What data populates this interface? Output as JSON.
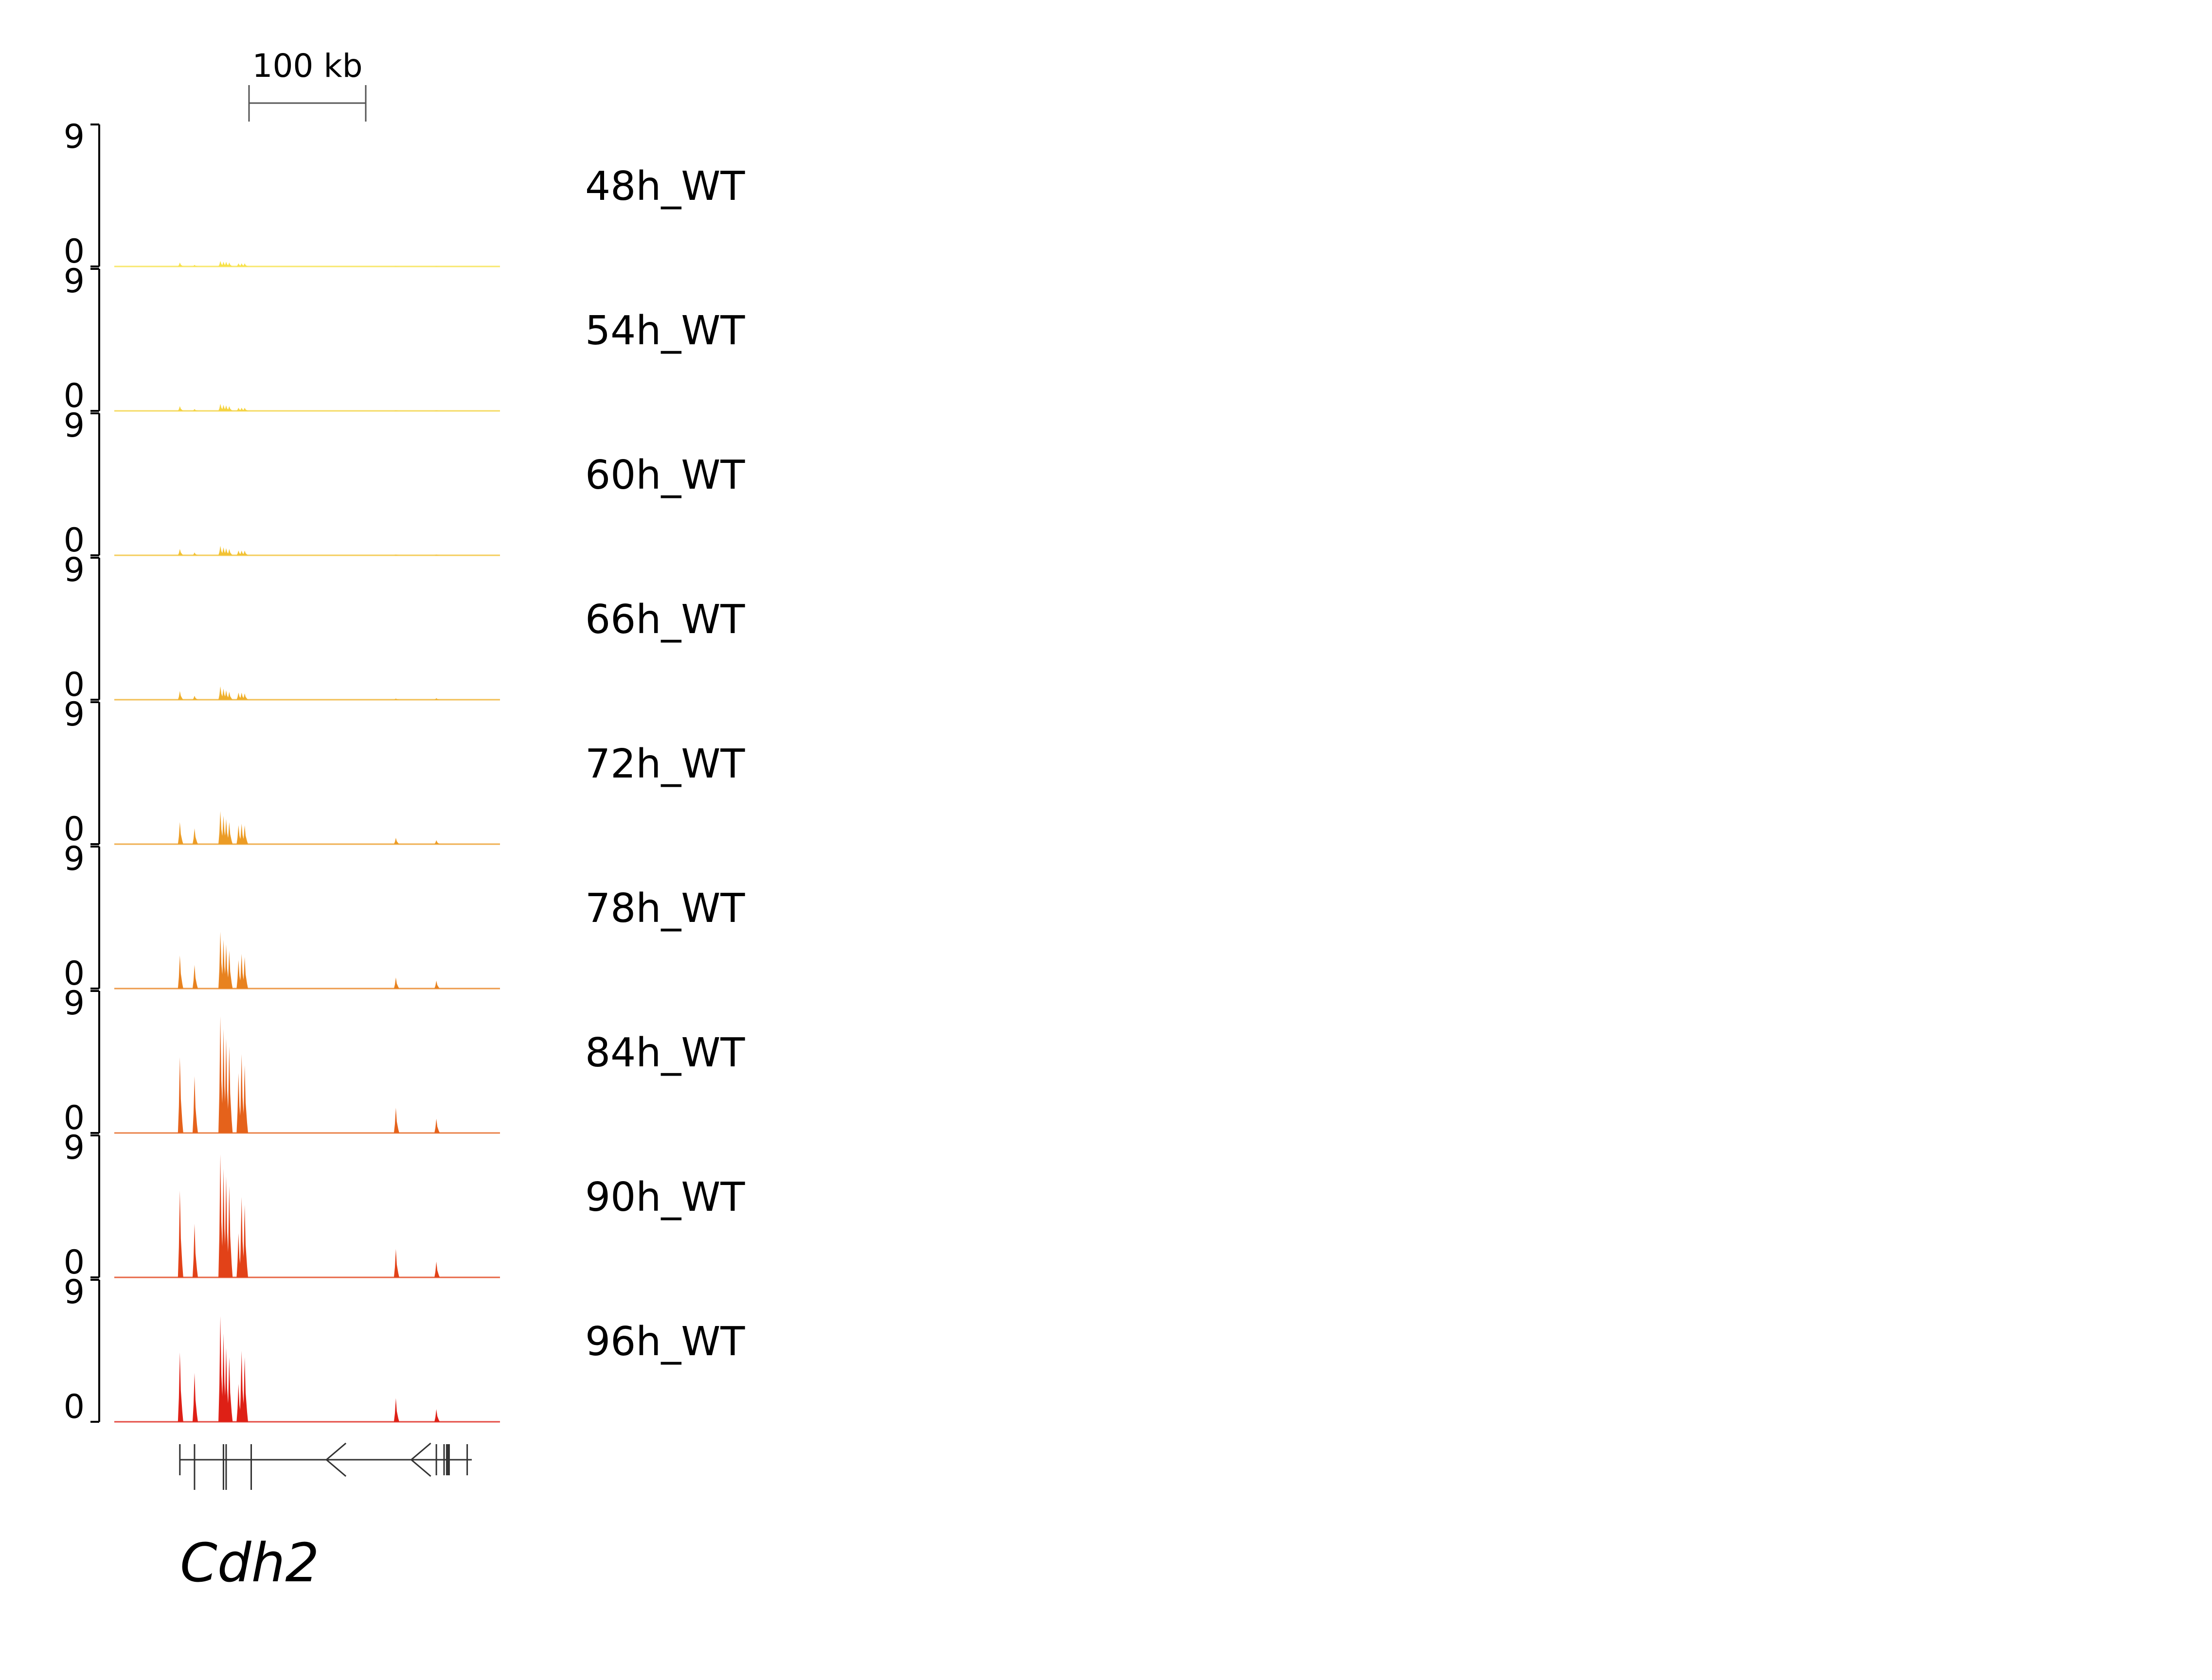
{
  "chart_data": {
    "type": "area",
    "scale_bar": {
      "label": "100 kb"
    },
    "y_range": [
      0,
      9
    ],
    "y_tick_labels": [
      "9",
      "0"
    ],
    "gene": {
      "name": "Cdh2",
      "strand": "-"
    },
    "peak_positions": [
      0.17,
      0.208,
      0.275,
      0.283,
      0.29,
      0.298,
      0.322,
      0.33,
      0.338,
      0.73,
      0.835
    ],
    "exon_positions": [
      0.17,
      0.208,
      0.283,
      0.29,
      0.355,
      0.835,
      0.855,
      0.865,
      0.915
    ],
    "tracks": [
      {
        "name": "48h_WT",
        "color": "#f7e24a",
        "values": [
          0.25,
          0.1,
          0.35,
          0.3,
          0.3,
          0.25,
          0.2,
          0.2,
          0.2,
          0.02,
          0.02
        ]
      },
      {
        "name": "54h_WT",
        "color": "#f5d33e",
        "values": [
          0.3,
          0.12,
          0.45,
          0.38,
          0.35,
          0.3,
          0.2,
          0.2,
          0.2,
          0.03,
          0.03
        ]
      },
      {
        "name": "60h_WT",
        "color": "#f2c234",
        "values": [
          0.4,
          0.18,
          0.6,
          0.5,
          0.45,
          0.4,
          0.3,
          0.3,
          0.3,
          0.05,
          0.05
        ]
      },
      {
        "name": "66h_WT",
        "color": "#efb02c",
        "values": [
          0.55,
          0.25,
          0.85,
          0.7,
          0.6,
          0.5,
          0.45,
          0.45,
          0.4,
          0.08,
          0.1
        ]
      },
      {
        "name": "72h_WT",
        "color": "#ec9c25",
        "values": [
          1.4,
          1.0,
          2.1,
          1.8,
          1.6,
          1.4,
          1.2,
          1.3,
          1.2,
          0.4,
          0.25
        ]
      },
      {
        "name": "78h_WT",
        "color": "#e8821f",
        "values": [
          2.1,
          1.5,
          3.6,
          3.1,
          2.8,
          2.4,
          1.8,
          2.2,
          2.0,
          0.7,
          0.5
        ]
      },
      {
        "name": "84h_WT",
        "color": "#e5621b",
        "values": [
          4.8,
          3.6,
          7.4,
          6.6,
          6.0,
          5.5,
          3.8,
          5.0,
          4.3,
          1.6,
          0.9
        ]
      },
      {
        "name": "90h_WT",
        "color": "#e24218",
        "values": [
          5.5,
          3.4,
          7.8,
          6.9,
          6.4,
          5.8,
          2.8,
          5.1,
          4.6,
          1.8,
          1.0
        ]
      },
      {
        "name": "96h_WT",
        "color": "#de2016",
        "values": [
          4.4,
          3.1,
          6.7,
          5.6,
          4.7,
          4.1,
          2.4,
          4.5,
          4.1,
          1.5,
          0.8
        ]
      }
    ]
  }
}
